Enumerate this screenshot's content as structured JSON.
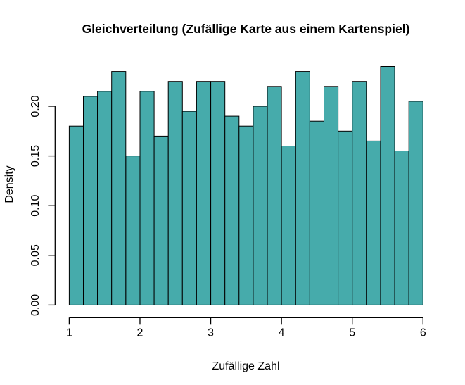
{
  "chart_data": {
    "type": "bar",
    "subtype": "histogram",
    "title": "Gleichverteilung (Zufällige Karte aus einem Kartenspiel)",
    "xlabel": "Zufällige Zahl",
    "ylabel": "Density",
    "bin_start": 1,
    "bin_width": 0.2,
    "densities": [
      0.18,
      0.21,
      0.215,
      0.235,
      0.15,
      0.215,
      0.17,
      0.225,
      0.195,
      0.225,
      0.225,
      0.19,
      0.18,
      0.2,
      0.22,
      0.16,
      0.235,
      0.185,
      0.22,
      0.175,
      0.225,
      0.165,
      0.24,
      0.155,
      0.205
    ],
    "x_ticks": [
      1,
      2,
      3,
      4,
      5,
      6
    ],
    "x_tick_labels": [
      "1",
      "2",
      "3",
      "4",
      "5",
      "6"
    ],
    "y_ticks": [
      0.0,
      0.05,
      0.1,
      0.15,
      0.2
    ],
    "y_tick_labels": [
      "0.00",
      "0.05",
      "0.10",
      "0.15",
      "0.20"
    ],
    "xlim": [
      1,
      6
    ],
    "ylim": [
      0,
      0.24
    ],
    "grid": false,
    "legend": false,
    "bar_fill": "#46abab",
    "bar_border": "#000000",
    "axis_color": "#000000",
    "text_color": "#000000",
    "background": "#ffffff"
  }
}
